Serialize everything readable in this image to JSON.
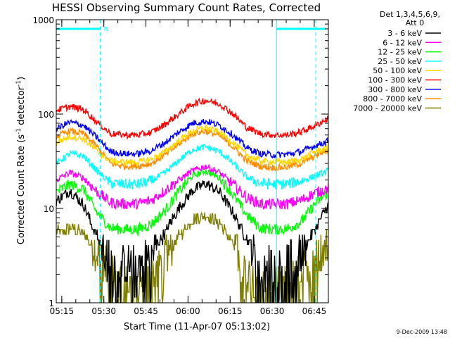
{
  "chart_data": {
    "type": "line",
    "title": "HESSI Observing Summary Count Rates, Corrected",
    "xlabel": "Start Time (11-Apr-07 05:13:02)",
    "ylabel_main": "Corrected Count Rate (s",
    "ylabel_exp1": "-1",
    "ylabel_mid": " detector",
    "ylabel_exp2": "-1",
    "ylabel_end": ")",
    "y_scale": "log",
    "ylim": [
      1,
      1000
    ],
    "xlim_minutes": [
      0,
      97
    ],
    "x_ticks": [
      {
        "label": "05:15",
        "min": 1.97
      },
      {
        "label": "05:30",
        "min": 16.97
      },
      {
        "label": "05:45",
        "min": 31.97
      },
      {
        "label": "06:00",
        "min": 46.97
      },
      {
        "label": "06:15",
        "min": 61.97
      },
      {
        "label": "06:30",
        "min": 76.97
      },
      {
        "label": "06:45",
        "min": 91.97
      }
    ],
    "y_ticks": [
      {
        "label": "1",
        "value": 1
      },
      {
        "label": "10",
        "value": 10
      },
      {
        "label": "100",
        "value": 100
      },
      {
        "label": "1000",
        "value": 1000
      }
    ],
    "legend": {
      "header1": "Det 1,3,4,5,6,9,",
      "header2": "Att 0",
      "position": "right, outside plot"
    },
    "series": [
      {
        "name": "3 - 6 keV",
        "color": "#000000",
        "values": [
          12,
          15.5,
          11,
          5,
          2.6,
          2.5,
          2.6,
          3.2,
          5.5,
          10,
          15.5,
          18.5,
          15,
          9,
          4.8,
          2.6,
          2.5,
          2.6,
          3.3,
          6,
          11
        ]
      },
      {
        "name": "6 - 12 keV",
        "color": "#ff00ff",
        "values": [
          20,
          24,
          21,
          15,
          11.5,
          11.2,
          11.2,
          12.2,
          15.5,
          20,
          25,
          28,
          24,
          18,
          13,
          11.2,
          11,
          11.2,
          12.2,
          14.5,
          16.5
        ]
      },
      {
        "name": "12 - 25 keV",
        "color": "#00ff00",
        "values": [
          15,
          18,
          16,
          9,
          6.2,
          6,
          6,
          6.8,
          9.5,
          15,
          22,
          25,
          21,
          14,
          8.5,
          6.2,
          6,
          6.1,
          7.2,
          11,
          15
        ]
      },
      {
        "name": "25 - 50 keV",
        "color": "#00ffff",
        "values": [
          30,
          38,
          36,
          25,
          18.5,
          18,
          18,
          19.5,
          24,
          32,
          42,
          45,
          40,
          30,
          21.5,
          18.5,
          18,
          18.2,
          19.5,
          22,
          25
        ]
      },
      {
        "name": "50 - 100 keV",
        "color": "#ffd700",
        "values": [
          50,
          58,
          55,
          40,
          32,
          31,
          31,
          33,
          40,
          52,
          66,
          72,
          64,
          50,
          37,
          32,
          31,
          31,
          33,
          40,
          44
        ]
      },
      {
        "name": "100 - 300 keV",
        "color": "#ff0000",
        "values": [
          110,
          120,
          112,
          82,
          62,
          60,
          60,
          64,
          78,
          100,
          128,
          140,
          128,
          100,
          72,
          62,
          60,
          60,
          65,
          75,
          90
        ]
      },
      {
        "name": "300 - 800 keV",
        "color": "#0000ff",
        "values": [
          70,
          82,
          76,
          56,
          40,
          38,
          38,
          41,
          50,
          64,
          80,
          84,
          76,
          60,
          44,
          38,
          37,
          37.5,
          40,
          46,
          52
        ]
      },
      {
        "name": "800 - 7000 keV",
        "color": "#ff8c00",
        "values": [
          58,
          66,
          62,
          45,
          30,
          28,
          28,
          30,
          37,
          48,
          62,
          66,
          59,
          45,
          32,
          28,
          27,
          27.5,
          30,
          36,
          42
        ]
      },
      {
        "name": "7000 - 20000 keV",
        "color": "#808000",
        "values": [
          5.5,
          6.2,
          5.5,
          3.4,
          1.9,
          1.6,
          1.6,
          1.9,
          3,
          5,
          7.5,
          8.5,
          7,
          4.2,
          2.1,
          1.6,
          1.55,
          1.6,
          2,
          3,
          4
        ]
      }
    ],
    "series_x_minutes": [
      0,
      4.85,
      9.7,
      14.55,
      19.4,
      24.25,
      29.1,
      33.95,
      38.8,
      43.65,
      48.5,
      53.35,
      58.2,
      63.05,
      67.9,
      72.75,
      77.6,
      82.45,
      87.3,
      92.15,
      97
    ],
    "annotations": {
      "status_marker": "N",
      "cyan_bar_color": "#00ffff",
      "vertical_line_minutes": [
        0,
        15.7,
        78.5,
        92.5
      ]
    },
    "footer_date": "9-Dec-2009 13:48"
  }
}
